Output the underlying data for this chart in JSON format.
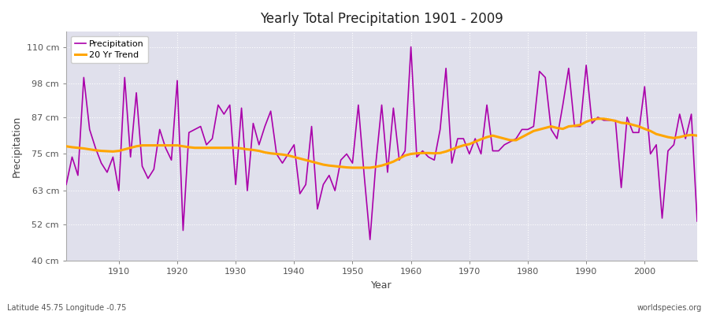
{
  "title": "Yearly Total Precipitation 1901 - 2009",
  "xlabel": "Year",
  "ylabel": "Precipitation",
  "footnote_left": "Latitude 45.75 Longitude -0.75",
  "footnote_right": "worldspecies.org",
  "line_color": "#AA00AA",
  "trend_color": "#FFA500",
  "fig_bg_color": "#FFFFFF",
  "plot_bg_color": "#E0E0EC",
  "ylim": [
    40,
    115
  ],
  "xlim": [
    1901,
    2009
  ],
  "yticks": [
    40,
    52,
    63,
    75,
    87,
    98,
    110
  ],
  "ytick_labels": [
    "40 cm",
    "52 cm",
    "63 cm",
    "75 cm",
    "87 cm",
    "98 cm",
    "110 cm"
  ],
  "xticks": [
    1910,
    1920,
    1930,
    1940,
    1950,
    1960,
    1970,
    1980,
    1990,
    2000
  ],
  "years": [
    1901,
    1902,
    1903,
    1904,
    1905,
    1906,
    1907,
    1908,
    1909,
    1910,
    1911,
    1912,
    1913,
    1914,
    1915,
    1916,
    1917,
    1918,
    1919,
    1920,
    1921,
    1922,
    1923,
    1924,
    1925,
    1926,
    1927,
    1928,
    1929,
    1930,
    1931,
    1932,
    1933,
    1934,
    1935,
    1936,
    1937,
    1938,
    1939,
    1940,
    1941,
    1942,
    1943,
    1944,
    1945,
    1946,
    1947,
    1948,
    1949,
    1950,
    1951,
    1952,
    1953,
    1954,
    1955,
    1956,
    1957,
    1958,
    1959,
    1960,
    1961,
    1962,
    1963,
    1964,
    1965,
    1966,
    1967,
    1968,
    1969,
    1970,
    1971,
    1972,
    1973,
    1974,
    1975,
    1976,
    1977,
    1978,
    1979,
    1980,
    1981,
    1982,
    1983,
    1984,
    1985,
    1986,
    1987,
    1988,
    1989,
    1990,
    1991,
    1992,
    1993,
    1994,
    1995,
    1996,
    1997,
    1998,
    1999,
    2000,
    2001,
    2002,
    2003,
    2004,
    2005,
    2006,
    2007,
    2008,
    2009
  ],
  "precip": [
    65,
    74,
    68,
    100,
    83,
    77,
    72,
    69,
    74,
    63,
    100,
    74,
    95,
    71,
    67,
    70,
    83,
    77,
    73,
    99,
    50,
    82,
    83,
    84,
    78,
    80,
    91,
    88,
    91,
    65,
    90,
    63,
    85,
    78,
    84,
    89,
    75,
    72,
    75,
    78,
    62,
    65,
    84,
    57,
    65,
    68,
    63,
    73,
    75,
    72,
    91,
    68,
    47,
    72,
    91,
    69,
    90,
    73,
    76,
    110,
    74,
    76,
    74,
    73,
    83,
    103,
    72,
    80,
    80,
    75,
    80,
    75,
    91,
    76,
    76,
    78,
    79,
    80,
    83,
    83,
    84,
    102,
    100,
    83,
    80,
    91,
    103,
    84,
    84,
    104,
    85,
    87,
    86,
    86,
    86,
    64,
    87,
    82,
    82,
    97,
    75,
    78,
    54,
    76,
    78,
    88,
    80,
    88,
    53
  ],
  "trend": [
    77.5,
    77.2,
    77.0,
    76.8,
    76.5,
    76.2,
    76.0,
    75.9,
    75.8,
    76.0,
    76.5,
    77.0,
    77.5,
    77.8,
    77.8,
    77.8,
    77.8,
    77.8,
    77.8,
    77.8,
    77.5,
    77.2,
    77.0,
    77.0,
    77.0,
    77.0,
    77.0,
    77.0,
    77.0,
    77.0,
    76.8,
    76.5,
    76.3,
    76.0,
    75.5,
    75.2,
    75.0,
    74.8,
    74.5,
    74.0,
    73.5,
    73.0,
    72.5,
    72.0,
    71.5,
    71.2,
    71.0,
    70.8,
    70.6,
    70.5,
    70.5,
    70.5,
    70.5,
    70.8,
    71.2,
    71.8,
    72.5,
    73.5,
    74.5,
    75.0,
    75.2,
    75.3,
    75.3,
    75.2,
    75.3,
    75.8,
    76.5,
    77.2,
    77.8,
    78.2,
    79.0,
    79.8,
    80.5,
    81.0,
    80.5,
    80.0,
    79.5,
    79.5,
    80.5,
    81.5,
    82.5,
    83.0,
    83.5,
    84.0,
    83.5,
    83.2,
    84.0,
    84.2,
    84.5,
    85.5,
    86.2,
    86.5,
    86.5,
    86.2,
    85.8,
    85.2,
    85.0,
    84.5,
    84.0,
    83.2,
    82.5,
    81.5,
    81.0,
    80.5,
    80.2,
    80.5,
    81.0,
    81.2,
    81.0
  ]
}
